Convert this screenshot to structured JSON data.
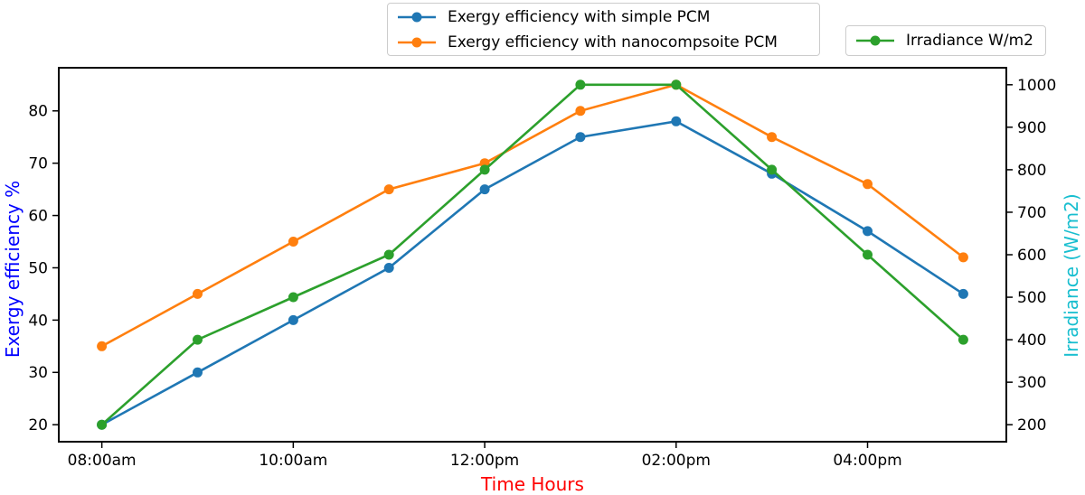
{
  "chart_data": {
    "type": "line",
    "title": "",
    "xlabel": "Time Hours",
    "xlabel_color": "#ff0000",
    "x_values": [
      "08:00am",
      "09:00am",
      "10:00am",
      "11:00am",
      "12:00pm",
      "01:00pm",
      "02:00pm",
      "03:00pm",
      "04:00pm",
      "05:00pm"
    ],
    "x_tick_indices": [
      0,
      2,
      4,
      6,
      8
    ],
    "x_tick_labels": [
      "08:00am",
      "10:00am",
      "12:00pm",
      "02:00pm",
      "04:00pm"
    ],
    "grid": false,
    "left_axis": {
      "label": "Exergy efficiency %",
      "label_color": "#0000ff",
      "ticks": [
        20,
        30,
        40,
        50,
        60,
        70,
        80
      ],
      "range": [
        16.75,
        88.25
      ]
    },
    "right_axis": {
      "label": "Irradiance (W/m2)",
      "label_color": "#17becf",
      "ticks": [
        200,
        300,
        400,
        500,
        600,
        700,
        800,
        900,
        1000
      ],
      "range": [
        160,
        1040
      ]
    },
    "series": [
      {
        "name": "Exergy efficiency with simple PCM",
        "color": "#1f77b4",
        "axis": "left",
        "marker": "circle",
        "values": [
          20,
          30,
          40,
          50,
          65,
          75,
          78,
          68,
          57,
          45
        ]
      },
      {
        "name": "Exergy efficiency with nanocompsoite PCM",
        "color": "#ff7f0e",
        "axis": "left",
        "marker": "circle",
        "values": [
          35,
          45,
          55,
          65,
          70,
          80,
          85,
          75,
          66,
          52
        ]
      },
      {
        "name": "Irradiance W/m2",
        "color": "#2ca02c",
        "axis": "right",
        "marker": "circle",
        "values": [
          200,
          400,
          500,
          600,
          800,
          1000,
          1000,
          800,
          600,
          400
        ]
      }
    ],
    "legend_position": "above-plot",
    "spine_color": "#000000",
    "tick_color": "#000000"
  }
}
